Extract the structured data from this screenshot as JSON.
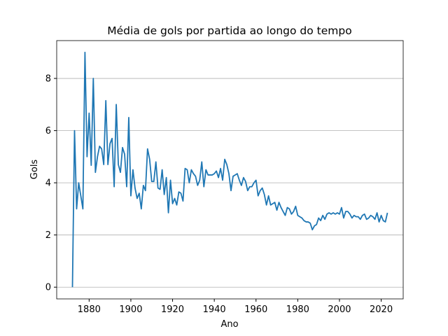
{
  "chart_data": {
    "type": "line",
    "title": "Média de gols por partida ao longo do tempo",
    "x_label": "Ano",
    "y_label": "Gols",
    "x": [
      1872,
      1873,
      1874,
      1875,
      1876,
      1877,
      1878,
      1879,
      1880,
      1881,
      1882,
      1883,
      1884,
      1885,
      1886,
      1887,
      1888,
      1889,
      1890,
      1891,
      1892,
      1893,
      1894,
      1895,
      1896,
      1897,
      1898,
      1899,
      1900,
      1901,
      1902,
      1903,
      1904,
      1905,
      1906,
      1907,
      1908,
      1909,
      1910,
      1911,
      1912,
      1913,
      1914,
      1915,
      1916,
      1917,
      1918,
      1919,
      1920,
      1921,
      1922,
      1923,
      1924,
      1925,
      1926,
      1927,
      1928,
      1929,
      1930,
      1931,
      1932,
      1933,
      1934,
      1935,
      1936,
      1937,
      1938,
      1939,
      1940,
      1941,
      1942,
      1943,
      1944,
      1945,
      1946,
      1947,
      1948,
      1949,
      1950,
      1951,
      1952,
      1953,
      1954,
      1955,
      1956,
      1957,
      1958,
      1959,
      1960,
      1961,
      1962,
      1963,
      1964,
      1965,
      1966,
      1967,
      1968,
      1969,
      1970,
      1971,
      1972,
      1973,
      1974,
      1975,
      1976,
      1977,
      1978,
      1979,
      1980,
      1981,
      1982,
      1983,
      1984,
      1985,
      1986,
      1987,
      1988,
      1989,
      1990,
      1991,
      1992,
      1993,
      1994,
      1995,
      1996,
      1997,
      1998,
      1999,
      2000,
      2001,
      2002,
      2003,
      2004,
      2005,
      2006,
      2007,
      2008,
      2009,
      2010,
      2011,
      2012,
      2013,
      2014,
      2015,
      2016,
      2017,
      2018,
      2019,
      2020,
      2021,
      2022,
      2023
    ],
    "values": [
      0,
      6,
      3,
      4,
      3.5,
      3,
      9,
      5,
      6.67,
      4.67,
      8,
      4.4,
      5,
      5.4,
      5.3,
      4.7,
      7.15,
      4.7,
      5.5,
      5.7,
      3.85,
      7,
      4.7,
      4.4,
      5.35,
      5.1,
      3.85,
      6.5,
      3.5,
      4.5,
      3.8,
      3.4,
      3.6,
      3.0,
      3.9,
      3.7,
      5.3,
      4.9,
      4.05,
      4.05,
      4.8,
      3.8,
      3.75,
      4.5,
      3.55,
      4.2,
      2.85,
      4.1,
      3.2,
      3.4,
      3.15,
      3.65,
      3.6,
      3.3,
      4.55,
      4.5,
      4.0,
      4.5,
      4.35,
      4.25,
      3.9,
      4.1,
      4.8,
      3.85,
      4.5,
      4.3,
      4.3,
      4.3,
      4.35,
      4.45,
      4.2,
      4.55,
      4.1,
      4.9,
      4.7,
      4.35,
      3.7,
      4.25,
      4.3,
      4.35,
      4.1,
      3.9,
      4.2,
      4.05,
      3.7,
      3.85,
      3.85,
      4.0,
      4.1,
      3.5,
      3.7,
      3.8,
      3.55,
      3.15,
      3.5,
      3.15,
      3.2,
      3.25,
      2.95,
      3.25,
      3.05,
      2.9,
      2.75,
      3.05,
      3.0,
      2.8,
      2.9,
      3.1,
      2.75,
      2.7,
      2.65,
      2.55,
      2.5,
      2.5,
      2.45,
      2.2,
      2.35,
      2.4,
      2.65,
      2.55,
      2.75,
      2.6,
      2.8,
      2.85,
      2.8,
      2.85,
      2.8,
      2.85,
      2.8,
      3.05,
      2.65,
      2.9,
      2.9,
      2.8,
      2.65,
      2.75,
      2.7,
      2.7,
      2.6,
      2.75,
      2.8,
      2.6,
      2.65,
      2.75,
      2.7,
      2.6,
      2.85,
      2.5,
      2.75,
      2.55,
      2.5,
      2.85
    ],
    "color": "#1f77b4",
    "xlim": [
      1864.45,
      2030.55
    ],
    "xticks": [
      1880,
      1900,
      1920,
      1940,
      1960,
      1980,
      2000,
      2020
    ],
    "ylim": [
      -0.45,
      9.45
    ],
    "yticks": [
      0,
      2,
      4,
      6,
      8
    ],
    "grid": "y"
  }
}
